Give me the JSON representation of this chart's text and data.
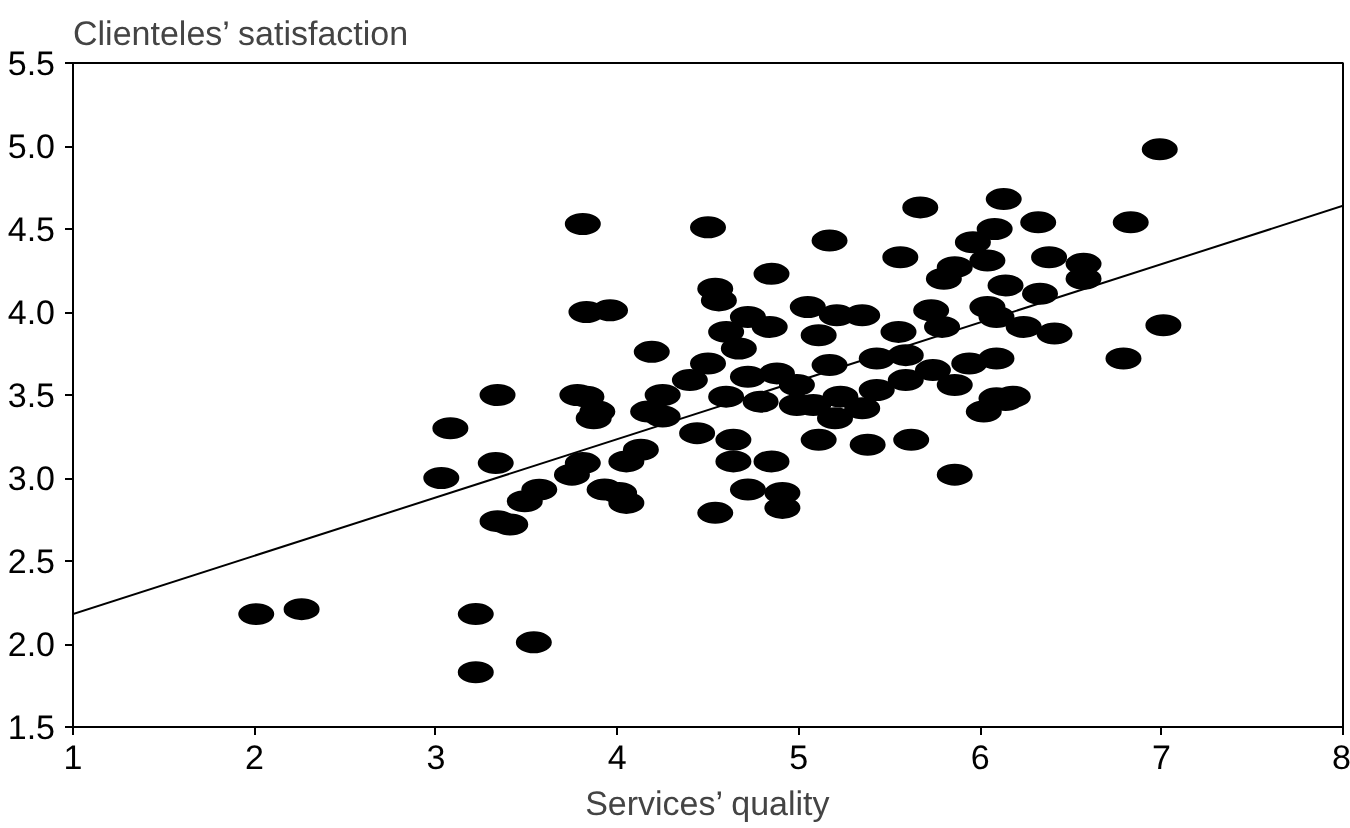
{
  "chart_data": {
    "type": "scatter",
    "xlabel": "Services’ quality",
    "ylabel": "Clienteles’ satisfaction",
    "xlim": [
      1,
      8
    ],
    "ylim": [
      1.5,
      5.5
    ],
    "xticks": [
      1,
      2,
      3,
      4,
      5,
      6,
      7,
      8
    ],
    "yticks": [
      1.5,
      {
        "value": 2,
        "label": "2.0"
      },
      2.5,
      {
        "value": 3,
        "label": "3.0"
      },
      3.5,
      {
        "value": 4,
        "label": "4.0"
      },
      4.5,
      {
        "value": 5,
        "label": "5.0"
      },
      5.5
    ],
    "grid": false,
    "marker": "circle",
    "series": [
      {
        "color": "#000000",
        "x": [
          3.81,
          3.83,
          3.34,
          3.78,
          3.87,
          3.08,
          2.01,
          2.26,
          3.03,
          3.33,
          3.34,
          3.41,
          3.22,
          3.22,
          3.54,
          3.49,
          3.57,
          3.75,
          3.93,
          4.5,
          5.17,
          4.85,
          5.67,
          6.13,
          6.99,
          6.32,
          6.83,
          5.56,
          6.08,
          5.96,
          6.04,
          5.86,
          5.8,
          6.38,
          6.57,
          6.57,
          6.14,
          6.33,
          6.04,
          6.09,
          6.24,
          6.41,
          7.01,
          6.79,
          5.73,
          5.79,
          5.55,
          4.54,
          4.56,
          3.96,
          4.72,
          4.6,
          4.84,
          5.05,
          5.21,
          5.35,
          5.11,
          4.67,
          4.19,
          4.5,
          5.17,
          5.43,
          5.59,
          5.74,
          5.94,
          6.09,
          5.59,
          5.86,
          6.09,
          6.02,
          6.18,
          4.4,
          4.25,
          4.17,
          4.72,
          4.88,
          4.99,
          5.08,
          5.23,
          5.35,
          5.43,
          4.6,
          3.83,
          3.89,
          4.25,
          4.44,
          4.64,
          5.11,
          5.38,
          5.62,
          5.86,
          6.14,
          4.13,
          4.05,
          3.81,
          4.64,
          4.85,
          4.72,
          4.91,
          4.91,
          4.54,
          4.01,
          4.05,
          4.99,
          5.2,
          4.79
        ],
        "values": [
          4.53,
          4.0,
          3.5,
          3.5,
          3.36,
          3.3,
          2.18,
          2.21,
          3.0,
          3.09,
          2.74,
          2.72,
          2.18,
          1.83,
          2.01,
          2.86,
          2.93,
          3.02,
          2.93,
          4.51,
          4.43,
          4.23,
          4.63,
          4.68,
          4.98,
          4.54,
          4.54,
          4.33,
          4.5,
          4.42,
          4.31,
          4.27,
          4.2,
          4.33,
          4.29,
          4.2,
          4.16,
          4.11,
          4.03,
          3.97,
          3.91,
          3.87,
          3.92,
          3.72,
          4.01,
          3.91,
          3.88,
          4.14,
          4.07,
          4.01,
          3.97,
          3.88,
          3.91,
          4.03,
          3.98,
          3.98,
          3.86,
          3.78,
          3.76,
          3.69,
          3.68,
          3.72,
          3.74,
          3.65,
          3.69,
          3.72,
          3.59,
          3.56,
          3.48,
          3.4,
          3.49,
          3.59,
          3.5,
          3.4,
          3.61,
          3.63,
          3.56,
          3.44,
          3.49,
          3.42,
          3.53,
          3.49,
          3.49,
          3.4,
          3.37,
          3.27,
          3.23,
          3.23,
          3.2,
          3.23,
          3.02,
          3.47,
          3.17,
          3.1,
          3.09,
          3.1,
          3.1,
          2.93,
          2.91,
          2.82,
          2.79,
          2.91,
          2.85,
          3.44,
          3.36,
          3.46
        ]
      },
      {
        "type": "line",
        "color": "#000000",
        "marker": "none",
        "line_style": "solid",
        "x": [
          1,
          8
        ],
        "values": [
          2.18,
          4.64
        ]
      }
    ]
  }
}
